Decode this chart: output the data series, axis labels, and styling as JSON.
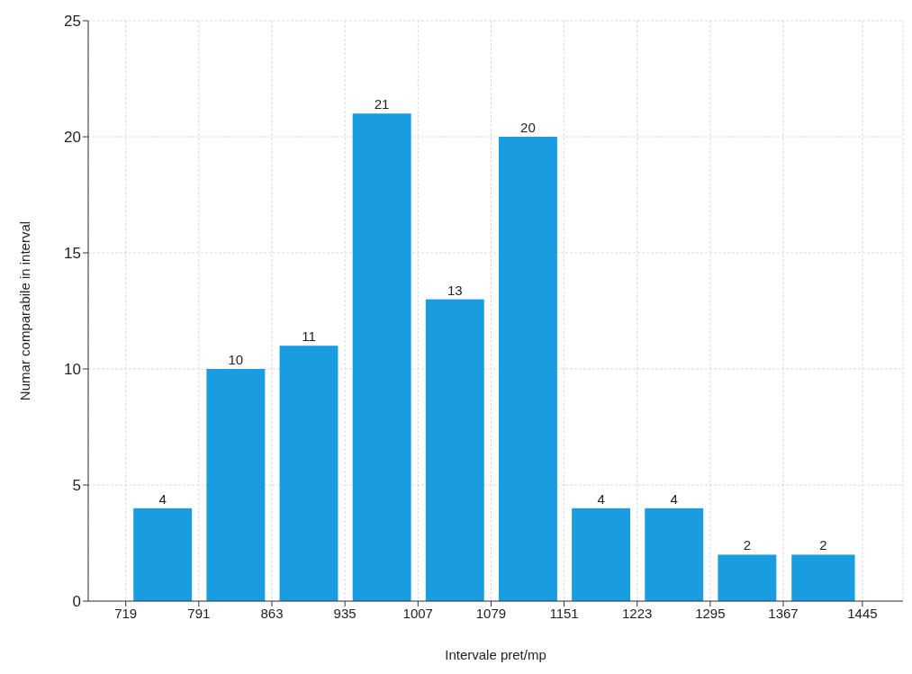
{
  "chart_data": {
    "type": "histogram",
    "xlabel": "Intervale pret/mp",
    "ylabel": "Numar comparabile in interval",
    "bins": [
      719,
      791,
      863,
      935,
      1007,
      1079,
      1151,
      1223,
      1295,
      1367,
      1445
    ],
    "values": [
      4,
      10,
      11,
      21,
      13,
      20,
      4,
      4,
      2,
      2
    ],
    "color": "#1a9de0",
    "xlim": [
      682,
      1485
    ],
    "xticks": [
      719,
      791,
      863,
      935,
      1007,
      1079,
      1151,
      1223,
      1295,
      1367,
      1445
    ],
    "ylim": [
      0,
      25
    ],
    "yticks": [
      0,
      5,
      10,
      15,
      20,
      25
    ],
    "grid": true,
    "data_labels": true
  }
}
